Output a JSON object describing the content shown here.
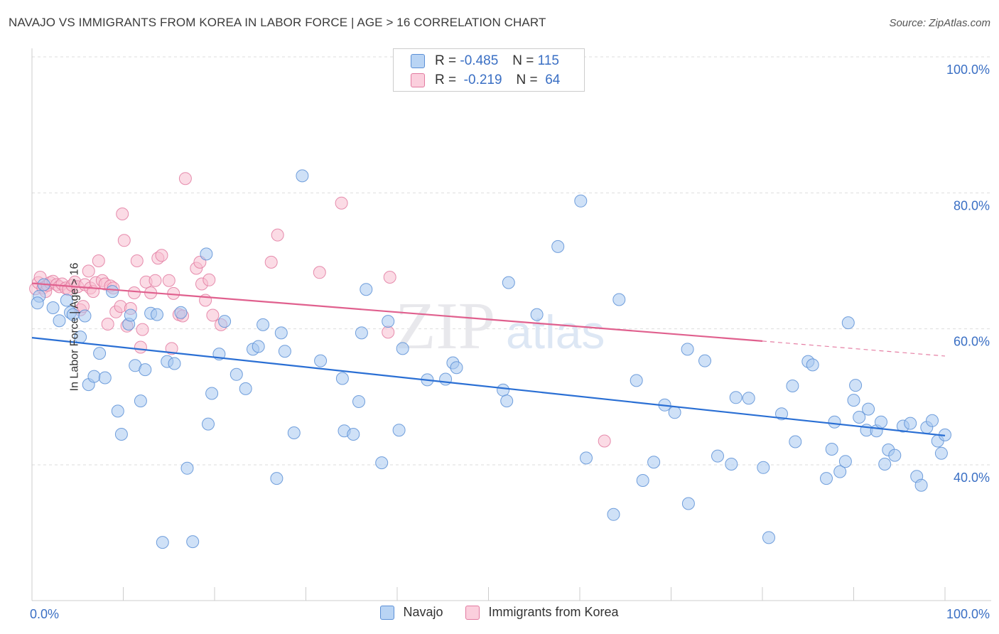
{
  "title": "NAVAJO VS IMMIGRANTS FROM KOREA IN LABOR FORCE | AGE > 16 CORRELATION CHART",
  "source": "Source: ZipAtlas.com",
  "watermark": {
    "zip": "ZIP",
    "atlas": "atlas"
  },
  "legend_top": {
    "rows": [
      {
        "r_label": "R =",
        "r_value": "-0.485",
        "n_label": "N =",
        "n_value": "115"
      },
      {
        "r_label": "R =",
        "r_value": "-0.219",
        "n_label": "N =",
        "n_value": "64"
      }
    ]
  },
  "colors": {
    "navajo_fill": "#a8c8f0",
    "navajo_stroke": "#5b8fd6",
    "navajo_line": "#2a6fd4",
    "korea_fill": "#f8bdd0",
    "korea_stroke": "#e27aa0",
    "korea_line": "#e0608e",
    "tick_label": "#3a6fc4",
    "grid": "#dddddd"
  },
  "chart_data": {
    "type": "scatter",
    "title": "NAVAJO VS IMMIGRANTS FROM KOREA IN LABOR FORCE | AGE > 16 CORRELATION CHART",
    "xlabel": "",
    "ylabel": "In Labor Force | Age > 16",
    "xlim": [
      0,
      100
    ],
    "ylim": [
      18,
      102
    ],
    "x_tick_labels": [
      "0.0%",
      "100.0%"
    ],
    "y_ticks": [
      40,
      60,
      80,
      100
    ],
    "y_tick_labels": [
      "40.0%",
      "60.0%",
      "80.0%",
      "100.0%"
    ],
    "grid": true,
    "legend_position": "top-center",
    "series": [
      {
        "name": "Navajo",
        "r": -0.485,
        "n": 115,
        "trend": {
          "x": [
            0,
            100
          ],
          "y": [
            58.7,
            44.3
          ]
        },
        "points": [
          [
            0.8,
            64.8
          ],
          [
            1.3,
            66.5
          ],
          [
            0.6,
            63.8
          ],
          [
            2.3,
            63.1
          ],
          [
            3.0,
            61.2
          ],
          [
            3.8,
            64.2
          ],
          [
            4.2,
            62.4
          ],
          [
            4.5,
            62.1
          ],
          [
            5.3,
            58.8
          ],
          [
            5.8,
            61.9
          ],
          [
            6.2,
            51.8
          ],
          [
            6.8,
            53.0
          ],
          [
            7.4,
            56.4
          ],
          [
            8.0,
            52.8
          ],
          [
            8.8,
            65.5
          ],
          [
            9.4,
            47.9
          ],
          [
            9.8,
            44.5
          ],
          [
            10.6,
            60.7
          ],
          [
            10.8,
            62.0
          ],
          [
            11.3,
            54.6
          ],
          [
            11.9,
            49.4
          ],
          [
            12.4,
            54.0
          ],
          [
            13.0,
            62.3
          ],
          [
            13.7,
            62.1
          ],
          [
            14.3,
            28.6
          ],
          [
            14.8,
            55.2
          ],
          [
            15.6,
            54.9
          ],
          [
            16.3,
            62.4
          ],
          [
            17.0,
            39.5
          ],
          [
            17.6,
            28.7
          ],
          [
            19.1,
            71.0
          ],
          [
            19.3,
            46.0
          ],
          [
            19.7,
            50.5
          ],
          [
            20.5,
            56.3
          ],
          [
            21.1,
            61.1
          ],
          [
            22.4,
            53.3
          ],
          [
            23.4,
            51.2
          ],
          [
            24.2,
            57.0
          ],
          [
            24.8,
            57.4
          ],
          [
            25.3,
            60.6
          ],
          [
            26.8,
            38.0
          ],
          [
            27.3,
            59.4
          ],
          [
            27.7,
            56.7
          ],
          [
            28.7,
            44.7
          ],
          [
            29.6,
            82.5
          ],
          [
            31.6,
            55.3
          ],
          [
            34.0,
            52.7
          ],
          [
            34.2,
            45.0
          ],
          [
            35.2,
            44.5
          ],
          [
            35.8,
            49.3
          ],
          [
            36.1,
            59.4
          ],
          [
            36.6,
            65.8
          ],
          [
            38.3,
            40.3
          ],
          [
            39.0,
            61.1
          ],
          [
            40.2,
            45.1
          ],
          [
            40.6,
            57.1
          ],
          [
            43.3,
            52.5
          ],
          [
            45.3,
            52.6
          ],
          [
            46.1,
            55.0
          ],
          [
            46.5,
            54.3
          ],
          [
            51.6,
            51.0
          ],
          [
            52.0,
            49.4
          ],
          [
            52.2,
            66.8
          ],
          [
            55.3,
            62.1
          ],
          [
            57.6,
            72.1
          ],
          [
            60.1,
            78.8
          ],
          [
            60.7,
            41.0
          ],
          [
            63.7,
            32.7
          ],
          [
            64.3,
            64.3
          ],
          [
            66.2,
            52.4
          ],
          [
            66.9,
            37.7
          ],
          [
            68.1,
            40.4
          ],
          [
            69.3,
            48.8
          ],
          [
            70.4,
            47.7
          ],
          [
            71.8,
            57.0
          ],
          [
            71.9,
            34.3
          ],
          [
            73.7,
            55.3
          ],
          [
            75.1,
            41.3
          ],
          [
            76.6,
            40.1
          ],
          [
            77.1,
            49.9
          ],
          [
            78.5,
            49.8
          ],
          [
            80.1,
            39.6
          ],
          [
            80.7,
            29.3
          ],
          [
            82.1,
            47.5
          ],
          [
            83.3,
            51.6
          ],
          [
            83.6,
            43.4
          ],
          [
            85.0,
            55.2
          ],
          [
            85.5,
            54.7
          ],
          [
            87.0,
            38.0
          ],
          [
            87.6,
            42.3
          ],
          [
            87.9,
            46.3
          ],
          [
            88.5,
            39.0
          ],
          [
            89.1,
            40.5
          ],
          [
            89.4,
            60.9
          ],
          [
            90.0,
            49.5
          ],
          [
            90.2,
            51.7
          ],
          [
            90.6,
            47.0
          ],
          [
            91.4,
            45.1
          ],
          [
            91.6,
            48.2
          ],
          [
            92.5,
            45.0
          ],
          [
            93.0,
            46.3
          ],
          [
            93.4,
            40.1
          ],
          [
            93.8,
            42.2
          ],
          [
            94.5,
            41.4
          ],
          [
            95.4,
            45.7
          ],
          [
            96.2,
            46.1
          ],
          [
            96.9,
            38.3
          ],
          [
            97.4,
            37.0
          ],
          [
            98.0,
            45.5
          ],
          [
            98.6,
            46.5
          ],
          [
            99.2,
            43.5
          ],
          [
            99.6,
            41.7
          ],
          [
            100.0,
            44.4
          ]
        ]
      },
      {
        "name": "Immigrants from Korea",
        "r": -0.219,
        "n": 64,
        "trend": {
          "x": [
            0,
            80
          ],
          "y": [
            66.7,
            58.2
          ]
        },
        "trend_dashed": {
          "x": [
            80,
            100
          ],
          "y": [
            58.2,
            56.0
          ]
        },
        "points": [
          [
            0.4,
            65.9
          ],
          [
            0.7,
            66.8
          ],
          [
            0.9,
            67.6
          ],
          [
            1.2,
            66.0
          ],
          [
            1.5,
            65.5
          ],
          [
            1.7,
            66.4
          ],
          [
            2.0,
            66.8
          ],
          [
            2.3,
            67.0
          ],
          [
            2.7,
            66.5
          ],
          [
            3.0,
            66.2
          ],
          [
            3.3,
            66.6
          ],
          [
            3.7,
            66.0
          ],
          [
            4.0,
            65.8
          ],
          [
            4.4,
            66.4
          ],
          [
            4.7,
            66.9
          ],
          [
            5.0,
            66.2
          ],
          [
            5.3,
            62.8
          ],
          [
            5.6,
            63.3
          ],
          [
            5.8,
            66.5
          ],
          [
            6.2,
            68.5
          ],
          [
            6.4,
            66.0
          ],
          [
            6.7,
            65.5
          ],
          [
            7.0,
            66.8
          ],
          [
            7.3,
            70.0
          ],
          [
            7.7,
            67.1
          ],
          [
            8.0,
            66.6
          ],
          [
            8.3,
            60.7
          ],
          [
            8.6,
            66.3
          ],
          [
            8.9,
            66.0
          ],
          [
            9.2,
            62.5
          ],
          [
            9.7,
            63.3
          ],
          [
            9.9,
            76.9
          ],
          [
            10.1,
            73.0
          ],
          [
            10.4,
            60.4
          ],
          [
            10.8,
            63.0
          ],
          [
            11.2,
            65.3
          ],
          [
            11.5,
            70.0
          ],
          [
            11.9,
            57.3
          ],
          [
            12.1,
            59.9
          ],
          [
            12.5,
            66.9
          ],
          [
            13.0,
            65.3
          ],
          [
            13.5,
            67.1
          ],
          [
            13.8,
            70.4
          ],
          [
            14.2,
            70.8
          ],
          [
            15.0,
            67.1
          ],
          [
            15.3,
            57.1
          ],
          [
            15.5,
            65.2
          ],
          [
            16.1,
            62.1
          ],
          [
            16.5,
            61.9
          ],
          [
            16.8,
            82.1
          ],
          [
            18.0,
            68.9
          ],
          [
            18.4,
            69.8
          ],
          [
            18.6,
            66.6
          ],
          [
            19.0,
            64.2
          ],
          [
            19.4,
            67.2
          ],
          [
            19.8,
            62.0
          ],
          [
            20.7,
            60.6
          ],
          [
            26.2,
            69.8
          ],
          [
            26.9,
            73.8
          ],
          [
            31.5,
            68.3
          ],
          [
            33.9,
            78.5
          ],
          [
            39.0,
            59.5
          ],
          [
            39.2,
            67.6
          ],
          [
            62.7,
            43.5
          ]
        ]
      }
    ]
  }
}
